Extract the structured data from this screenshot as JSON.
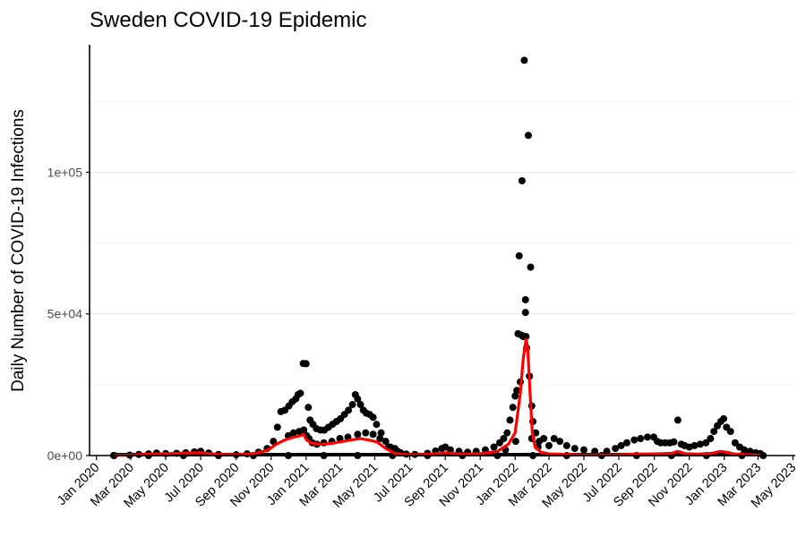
{
  "chart_data": {
    "type": "scatter",
    "title": "Sweden COVID-19 Epidemic",
    "xlabel": "",
    "ylabel": "Daily Number of COVID-19 Infections",
    "x_axis": {
      "type": "date",
      "range": [
        "2019-12-20",
        "2023-05-05"
      ],
      "ticks": [
        "2020-01-01",
        "2020-03-01",
        "2020-05-01",
        "2020-07-01",
        "2020-09-01",
        "2020-11-01",
        "2021-01-01",
        "2021-03-01",
        "2021-05-01",
        "2021-07-01",
        "2021-09-01",
        "2021-11-01",
        "2022-01-01",
        "2022-03-01",
        "2022-05-01",
        "2022-07-01",
        "2022-09-01",
        "2022-11-01",
        "2023-01-01",
        "2023-03-01",
        "2023-05-01"
      ],
      "tick_labels": [
        "Jan 2020",
        "Mar 2020",
        "May 2020",
        "Jul 2020",
        "Sep 2020",
        "Nov 2020",
        "Jan 2021",
        "Mar 2021",
        "May 2021",
        "Jul 2021",
        "Sep 2021",
        "Nov 2021",
        "Jan 2022",
        "Mar 2022",
        "May 2022",
        "Jul 2022",
        "Sep 2022",
        "Nov 2022",
        "Jan 2023",
        "Mar 2023",
        "May 2023"
      ]
    },
    "y_axis": {
      "range": [
        0,
        145000
      ],
      "ticks": [
        0,
        50000,
        100000
      ],
      "tick_labels": [
        "0e+00",
        "5e+04",
        "1e+05"
      ],
      "minor_gridlines": [
        25000,
        75000,
        125000
      ]
    },
    "grid": "horizontal",
    "legend": "none",
    "colors": {
      "points": "#000000",
      "smoothed_line": "#ff0000",
      "gridline": "#ebebeb",
      "axis": "#000000"
    },
    "series": [
      {
        "kind": "points",
        "points": [
          [
            "2020-01-31",
            10
          ],
          [
            "2020-02-28",
            150
          ],
          [
            "2020-03-15",
            400
          ],
          [
            "2020-04-01",
            600
          ],
          [
            "2020-04-15",
            900
          ],
          [
            "2020-05-01",
            700
          ],
          [
            "2020-05-20",
            800
          ],
          [
            "2020-06-05",
            1000
          ],
          [
            "2020-06-20",
            1300
          ],
          [
            "2020-07-01",
            1500
          ],
          [
            "2020-07-15",
            900
          ],
          [
            "2020-08-01",
            400
          ],
          [
            "2020-09-01",
            300
          ],
          [
            "2020-09-20",
            600
          ],
          [
            "2020-10-10",
            1200
          ],
          [
            "2020-10-25",
            2500
          ],
          [
            "2020-11-05",
            5000
          ],
          [
            "2020-11-12",
            10000
          ],
          [
            "2020-11-18",
            15500
          ],
          [
            "2020-11-25",
            16000
          ],
          [
            "2020-12-02",
            17500
          ],
          [
            "2020-12-08",
            19000
          ],
          [
            "2020-12-14",
            20000
          ],
          [
            "2020-12-18",
            21500
          ],
          [
            "2020-12-22",
            22000
          ],
          [
            "2020-12-27",
            32500
          ],
          [
            "2021-01-01",
            32400
          ],
          [
            "2021-01-05",
            17000
          ],
          [
            "2021-01-08",
            12500
          ],
          [
            "2021-01-13",
            11000
          ],
          [
            "2021-01-19",
            9500
          ],
          [
            "2021-01-26",
            9000
          ],
          [
            "2021-02-02",
            9000
          ],
          [
            "2021-02-09",
            10000
          ],
          [
            "2021-02-16",
            11000
          ],
          [
            "2021-02-23",
            12000
          ],
          [
            "2021-03-02",
            13000
          ],
          [
            "2021-03-09",
            14500
          ],
          [
            "2021-03-16",
            16000
          ],
          [
            "2021-03-23",
            18000
          ],
          [
            "2021-03-28",
            21500
          ],
          [
            "2021-04-01",
            20000
          ],
          [
            "2021-04-06",
            18000
          ],
          [
            "2021-04-11",
            16000
          ],
          [
            "2021-04-16",
            15000
          ],
          [
            "2021-04-22",
            14500
          ],
          [
            "2021-04-28",
            13500
          ],
          [
            "2021-05-04",
            11000
          ],
          [
            "2021-05-12",
            8000
          ],
          [
            "2021-05-20",
            5000
          ],
          [
            "2021-05-28",
            3000
          ],
          [
            "2021-06-05",
            2500
          ],
          [
            "2021-06-15",
            1000
          ],
          [
            "2021-06-25",
            500
          ],
          [
            "2021-07-10",
            400
          ],
          [
            "2021-08-01",
            800
          ],
          [
            "2021-08-15",
            1600
          ],
          [
            "2021-08-26",
            2500
          ],
          [
            "2021-09-01",
            3000
          ],
          [
            "2021-09-10",
            2000
          ],
          [
            "2021-09-25",
            1500
          ],
          [
            "2021-10-10",
            1200
          ],
          [
            "2021-10-25",
            1500
          ],
          [
            "2021-11-10",
            2000
          ],
          [
            "2021-11-25",
            3000
          ],
          [
            "2021-12-05",
            4500
          ],
          [
            "2021-12-12",
            6000
          ],
          [
            "2021-12-18",
            8000
          ],
          [
            "2021-12-23",
            12500
          ],
          [
            "2021-12-28",
            17000
          ],
          [
            "2022-01-01",
            21000
          ],
          [
            "2022-01-04",
            23000
          ],
          [
            "2022-01-06",
            43000
          ],
          [
            "2022-01-08",
            70500
          ],
          [
            "2022-01-10",
            26000
          ],
          [
            "2022-01-12",
            42500
          ],
          [
            "2022-01-13",
            97000
          ],
          [
            "2022-01-15",
            42000
          ],
          [
            "2022-01-17",
            139500
          ],
          [
            "2022-01-19",
            55000
          ],
          [
            "2022-01-19",
            50500
          ],
          [
            "2022-01-20",
            42000
          ],
          [
            "2022-01-21",
            38000
          ],
          [
            "2022-01-24",
            113000
          ],
          [
            "2022-01-26",
            28000
          ],
          [
            "2022-01-28",
            66500
          ],
          [
            "2022-01-30",
            17500
          ],
          [
            "2022-02-01",
            12000
          ],
          [
            "2022-02-06",
            8000
          ],
          [
            "2022-02-12",
            5000
          ],
          [
            "2022-02-20",
            6000
          ],
          [
            "2022-03-01",
            3500
          ],
          [
            "2022-03-10",
            6000
          ],
          [
            "2022-03-20",
            5000
          ],
          [
            "2022-04-01",
            3500
          ],
          [
            "2022-04-15",
            2500
          ],
          [
            "2022-05-01",
            2000
          ],
          [
            "2022-05-20",
            1500
          ],
          [
            "2022-06-10",
            1500
          ],
          [
            "2022-06-25",
            2500
          ],
          [
            "2022-07-05",
            3500
          ],
          [
            "2022-07-15",
            4500
          ],
          [
            "2022-07-28",
            5500
          ],
          [
            "2022-08-08",
            6000
          ],
          [
            "2022-08-20",
            6500
          ],
          [
            "2022-08-31",
            6500
          ],
          [
            "2022-09-06",
            5000
          ],
          [
            "2022-09-12",
            4500
          ],
          [
            "2022-09-20",
            4500
          ],
          [
            "2022-09-28",
            4500
          ],
          [
            "2022-10-05",
            4800
          ],
          [
            "2022-10-12",
            12500
          ],
          [
            "2022-10-18",
            4000
          ],
          [
            "2022-10-24",
            3500
          ],
          [
            "2022-11-01",
            3000
          ],
          [
            "2022-11-10",
            3500
          ],
          [
            "2022-11-20",
            4000
          ],
          [
            "2022-11-30",
            4500
          ],
          [
            "2022-12-08",
            6000
          ],
          [
            "2022-12-14",
            8500
          ],
          [
            "2022-12-20",
            10500
          ],
          [
            "2022-12-26",
            12000
          ],
          [
            "2022-12-31",
            13000
          ],
          [
            "2023-01-05",
            10000
          ],
          [
            "2023-01-12",
            8500
          ],
          [
            "2023-01-20",
            4500
          ],
          [
            "2023-01-28",
            3000
          ],
          [
            "2023-02-05",
            2000
          ],
          [
            "2023-02-15",
            1500
          ],
          [
            "2023-02-25",
            1000
          ],
          [
            "2023-03-05",
            700
          ]
        ]
      },
      {
        "kind": "points",
        "points": [
          [
            "2020-12-01",
            7000
          ],
          [
            "2020-12-10",
            8000
          ],
          [
            "2020-12-20",
            8500
          ],
          [
            "2020-12-28",
            9000
          ],
          [
            "2021-01-02",
            7000
          ],
          [
            "2021-01-06",
            6000
          ],
          [
            "2021-01-12",
            4500
          ],
          [
            "2021-01-20",
            4000
          ],
          [
            "2021-02-01",
            4500
          ],
          [
            "2021-02-15",
            5000
          ],
          [
            "2021-03-01",
            6000
          ],
          [
            "2021-03-15",
            6500
          ],
          [
            "2021-04-01",
            7500
          ],
          [
            "2021-04-15",
            8000
          ],
          [
            "2021-04-28",
            7500
          ],
          [
            "2021-05-10",
            6000
          ],
          [
            "2021-05-25",
            3000
          ],
          [
            "2021-06-10",
            1500
          ],
          [
            "2021-12-15",
            2000
          ],
          [
            "2022-01-02",
            5000
          ],
          [
            "2022-01-30",
            6000
          ],
          [
            "2022-02-10",
            3000
          ]
        ]
      },
      {
        "kind": "points",
        "points": [
          [
            "2020-02-01",
            0
          ],
          [
            "2020-04-01",
            0
          ],
          [
            "2020-06-01",
            0
          ],
          [
            "2020-08-01",
            0
          ],
          [
            "2020-10-01",
            0
          ],
          [
            "2020-12-01",
            0
          ],
          [
            "2021-02-01",
            0
          ],
          [
            "2021-04-01",
            0
          ],
          [
            "2021-06-01",
            0
          ],
          [
            "2021-08-01",
            0
          ],
          [
            "2021-10-01",
            0
          ],
          [
            "2021-12-01",
            0
          ],
          [
            "2022-02-01",
            0
          ],
          [
            "2022-04-01",
            0
          ],
          [
            "2022-06-01",
            0
          ],
          [
            "2022-08-01",
            0
          ],
          [
            "2022-10-01",
            0
          ],
          [
            "2022-12-01",
            0
          ],
          [
            "2023-02-01",
            0
          ],
          [
            "2023-03-10",
            0
          ]
        ]
      },
      {
        "kind": "line",
        "points": [
          [
            "2020-02-01",
            50
          ],
          [
            "2020-03-01",
            200
          ],
          [
            "2020-04-01",
            500
          ],
          [
            "2020-05-01",
            700
          ],
          [
            "2020-06-01",
            900
          ],
          [
            "2020-07-01",
            1000
          ],
          [
            "2020-08-01",
            400
          ],
          [
            "2020-09-01",
            300
          ],
          [
            "2020-10-01",
            700
          ],
          [
            "2020-10-25",
            1800
          ],
          [
            "2020-11-10",
            4000
          ],
          [
            "2020-11-25",
            5500
          ],
          [
            "2020-12-10",
            6500
          ],
          [
            "2020-12-22",
            7000
          ],
          [
            "2020-12-28",
            7500
          ],
          [
            "2021-01-02",
            5500
          ],
          [
            "2021-01-10",
            4500
          ],
          [
            "2021-01-25",
            4000
          ],
          [
            "2021-02-10",
            4200
          ],
          [
            "2021-03-01",
            4800
          ],
          [
            "2021-03-20",
            5500
          ],
          [
            "2021-04-05",
            6000
          ],
          [
            "2021-04-20",
            5500
          ],
          [
            "2021-05-05",
            4800
          ],
          [
            "2021-05-20",
            2500
          ],
          [
            "2021-06-05",
            800
          ],
          [
            "2021-06-20",
            400
          ],
          [
            "2021-07-15",
            300
          ],
          [
            "2021-08-15",
            700
          ],
          [
            "2021-09-01",
            1000
          ],
          [
            "2021-10-01",
            500
          ],
          [
            "2021-11-01",
            700
          ],
          [
            "2021-12-01",
            1500
          ],
          [
            "2021-12-20",
            4000
          ],
          [
            "2022-01-01",
            8000
          ],
          [
            "2022-01-10",
            22000
          ],
          [
            "2022-01-15",
            34000
          ],
          [
            "2022-01-20",
            41000
          ],
          [
            "2022-01-23",
            38000
          ],
          [
            "2022-01-27",
            22000
          ],
          [
            "2022-01-31",
            8000
          ],
          [
            "2022-02-05",
            3000
          ],
          [
            "2022-02-15",
            1200
          ],
          [
            "2022-03-01",
            600
          ],
          [
            "2022-04-01",
            400
          ],
          [
            "2022-05-01",
            200
          ],
          [
            "2022-06-01",
            200
          ],
          [
            "2022-07-01",
            300
          ],
          [
            "2022-08-01",
            500
          ],
          [
            "2022-09-01",
            600
          ],
          [
            "2022-10-01",
            800
          ],
          [
            "2022-10-12",
            1500
          ],
          [
            "2022-10-25",
            700
          ],
          [
            "2022-11-15",
            500
          ],
          [
            "2022-12-10",
            800
          ],
          [
            "2022-12-25",
            1500
          ],
          [
            "2023-01-05",
            1200
          ],
          [
            "2023-01-20",
            500
          ],
          [
            "2023-02-15",
            300
          ],
          [
            "2023-03-05",
            200
          ]
        ]
      }
    ]
  }
}
